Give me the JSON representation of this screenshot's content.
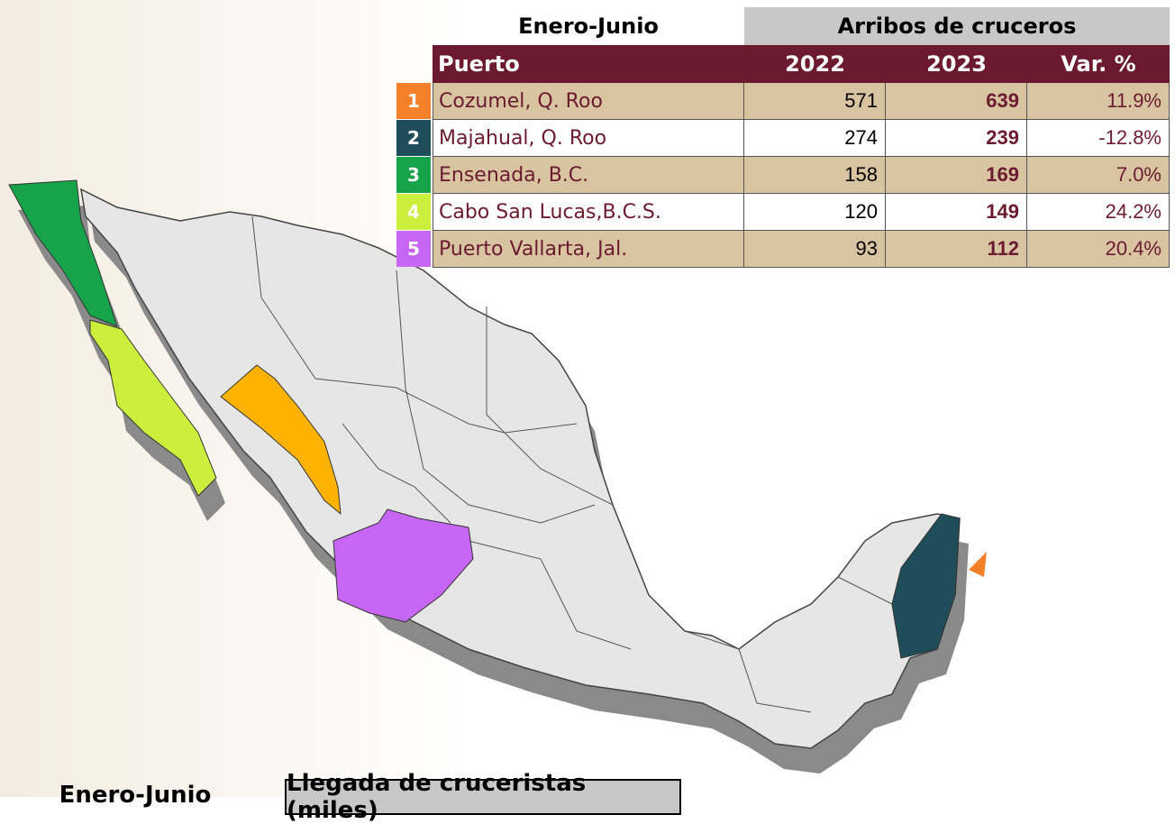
{
  "table": {
    "period": "Enero-Junio",
    "group_header": "Arribos de cruceros",
    "columns": [
      "Puerto",
      "2022",
      "2023",
      "Var. %"
    ],
    "rows": [
      [
        "1",
        "Cozumel, Q. Roo",
        "571",
        "639",
        "11.9%"
      ],
      [
        "2",
        "Majahual, Q. Roo",
        "274",
        "239",
        "-12.8%"
      ],
      [
        "3",
        "Ensenada, B.C.",
        "158",
        "169",
        "7.0%"
      ],
      [
        "4",
        "Cabo San Lucas,B.C.S.",
        "120",
        "149",
        "24.2%"
      ],
      [
        "5",
        "Puerto Vallarta, Jal.",
        "93",
        "112",
        "20.4%"
      ]
    ]
  },
  "footer": {
    "period": "Enero-Junio",
    "group_header": "Llegada de cruceristas (miles)"
  }
}
